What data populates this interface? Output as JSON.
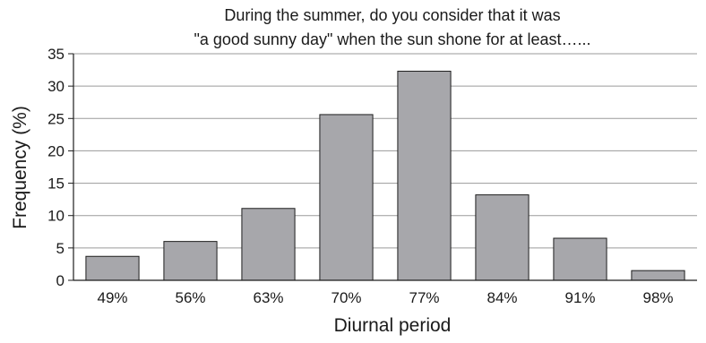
{
  "chart_data": {
    "type": "bar",
    "title": [
      "During the summer, do you consider that it was",
      "\"a good sunny day\" when the sun shone for at least…..."
    ],
    "xlabel": "Diurnal period",
    "ylabel": "Frequency (%)",
    "categories": [
      "49%",
      "56%",
      "63%",
      "70%",
      "77%",
      "84%",
      "91%",
      "98%"
    ],
    "values": [
      3.7,
      6.0,
      11.1,
      25.6,
      32.3,
      13.2,
      6.5,
      1.5
    ],
    "ylim": [
      0,
      35
    ],
    "yticks": [
      0,
      5,
      10,
      15,
      20,
      25,
      30,
      35
    ],
    "grid": true,
    "colors": {
      "bar_fill": "#a7a7ab",
      "bar_stroke": "#1e1e1e",
      "grid": "#9a9a9a",
      "axis": "#1e1e1e"
    }
  }
}
